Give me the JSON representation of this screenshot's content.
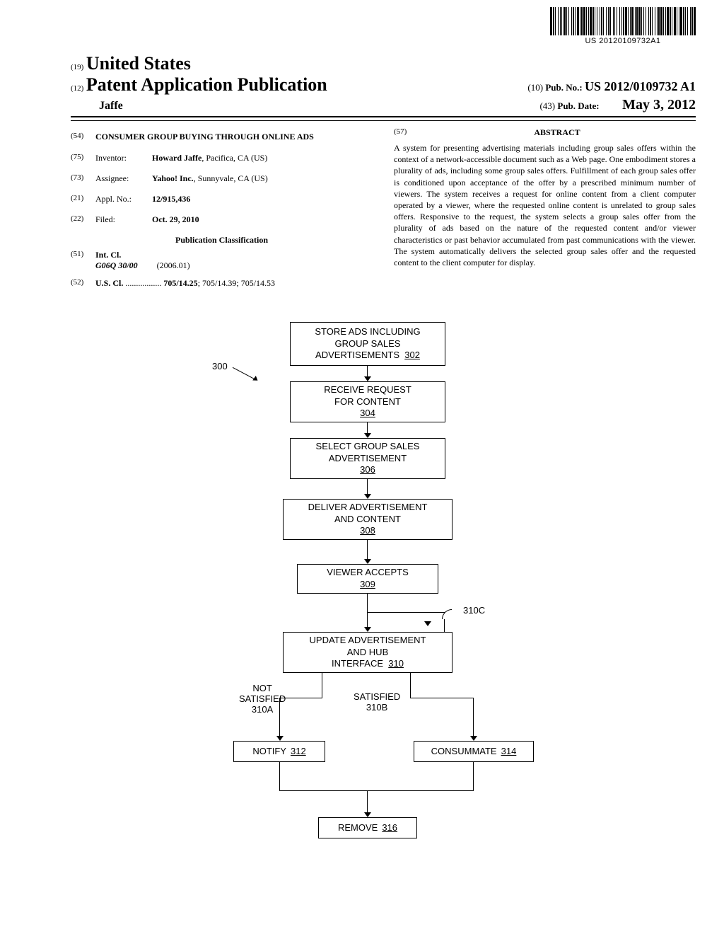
{
  "barcode_text": "US 20120109732A1",
  "header": {
    "country_code": "(19)",
    "country": "United States",
    "doc_code": "(12)",
    "doc_type": "Patent Application Publication",
    "pubno_code": "(10)",
    "pubno_label": "Pub. No.:",
    "pubno": "US 2012/0109732 A1",
    "applicant": "Jaffe",
    "pubdate_code": "(43)",
    "pubdate_label": "Pub. Date:",
    "pubdate": "May 3, 2012"
  },
  "biblio": {
    "title_code": "(54)",
    "title": "CONSUMER GROUP BUYING THROUGH ONLINE ADS",
    "inventor_code": "(75)",
    "inventor_label": "Inventor:",
    "inventor_name": "Howard Jaffe",
    "inventor_loc": ", Pacifica, CA (US)",
    "assignee_code": "(73)",
    "assignee_label": "Assignee:",
    "assignee_name": "Yahoo! Inc.",
    "assignee_loc": ", Sunnyvale, CA (US)",
    "applno_code": "(21)",
    "applno_label": "Appl. No.:",
    "applno": "12/915,436",
    "filed_code": "(22)",
    "filed_label": "Filed:",
    "filed": "Oct. 29, 2010",
    "pubclass": "Publication Classification",
    "intcl_code": "(51)",
    "intcl_label": "Int. Cl.",
    "intcl_class": "G06Q 30/00",
    "intcl_date": "(2006.01)",
    "uscl_code": "(52)",
    "uscl_label": "U.S. Cl.",
    "uscl_dots": " ................. ",
    "uscl_main": "705/14.25",
    "uscl_rest": "; 705/14.39; 705/14.53"
  },
  "abstract": {
    "code": "(57)",
    "heading": "ABSTRACT",
    "body": "A system for presenting advertising materials including group sales offers within the context of a network-accessible document such as a Web page. One embodiment stores a plurality of ads, including some group sales offers. Fulfillment of each group sales offer is conditioned upon acceptance of the offer by a prescribed minimum number of viewers. The system receives a request for online content from a client computer operated by a viewer, where the requested online content is unrelated to group sales offers. Responsive to the request, the system selects a group sales offer from the plurality of ads based on the nature of the requested content and/or viewer characteristics or past behavior accumulated from past communications with the viewer. The system automatically delivers the selected group sales offer and the requested content to the client computer for display."
  },
  "figure": {
    "ref300": "300",
    "box302_l1": "STORE ADS INCLUDING",
    "box302_l2": "GROUP SALES",
    "box302_l3": "ADVERTISEMENTS",
    "box302_ref": "302",
    "box304_l1": "RECEIVE REQUEST",
    "box304_l2": "FOR CONTENT",
    "box304_ref": "304",
    "box306_l1": "SELECT GROUP SALES",
    "box306_l2": "ADVERTISEMENT",
    "box306_ref": "306",
    "box308_l1": "DELIVER ADVERTISEMENT",
    "box308_l2": "AND CONTENT",
    "box308_ref": "308",
    "box309_l1": "VIEWER ACCEPTS",
    "box309_ref": "309",
    "box310_l1": "UPDATE ADVERTISEMENT",
    "box310_l2": "AND HUB",
    "box310_l3": "INTERFACE",
    "box310_ref": "310",
    "label310A_l1": "NOT",
    "label310A_l2": "SATISFIED",
    "label310A_ref": "310A",
    "label310B_l1": "SATISFIED",
    "label310B_ref": "310B",
    "label310C": "310C",
    "box312_l1": "NOTIFY",
    "box312_ref": "312",
    "box314_l1": "CONSUMMATE",
    "box314_ref": "314",
    "box316_l1": "REMOVE",
    "box316_ref": "316"
  }
}
